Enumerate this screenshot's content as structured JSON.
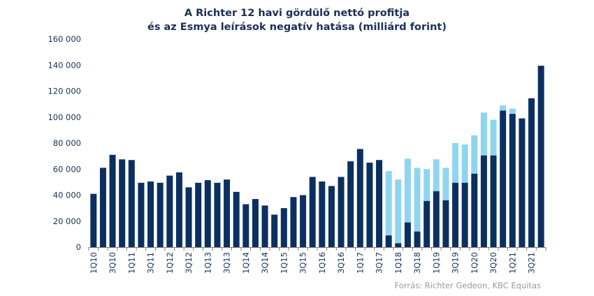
{
  "chart_data": {
    "type": "bar",
    "stacked": true,
    "title_line1": "A Richter 12 havi gördülő nettó profitja",
    "title_line2": "és az Esmya leírások negatív hatása (milliárd forint)",
    "source": "Forrás: Richter Gedeon, KBC Equitas",
    "ylim": [
      0,
      160000
    ],
    "yticks": [
      0,
      20000,
      40000,
      60000,
      80000,
      100000,
      120000,
      140000,
      160000
    ],
    "ytick_labels": [
      "0",
      "20 000",
      "40 000",
      "60 000",
      "80 000",
      "100 000",
      "120 000",
      "140 000",
      "160 000"
    ],
    "categories": [
      "1Q10",
      "2Q10",
      "3Q10",
      "4Q10",
      "1Q11",
      "2Q11",
      "3Q11",
      "4Q11",
      "1Q12",
      "2Q12",
      "3Q12",
      "4Q12",
      "1Q13",
      "2Q13",
      "3Q13",
      "4Q13",
      "1Q14",
      "2Q14",
      "3Q14",
      "4Q14",
      "1Q15",
      "2Q15",
      "3Q15",
      "4Q15",
      "1Q16",
      "2Q16",
      "3Q16",
      "4Q16",
      "1Q17",
      "2Q17",
      "3Q17",
      "4Q17",
      "1Q18",
      "2Q18",
      "3Q18",
      "4Q18",
      "1Q19",
      "2Q19",
      "3Q19",
      "4Q19",
      "1Q20",
      "2Q20",
      "3Q20",
      "4Q20",
      "1Q21",
      "2Q21",
      "3Q21",
      "4Q21"
    ],
    "xtick_labels": [
      "1Q10",
      "",
      "3Q10",
      "",
      "1Q11",
      "",
      "3Q11",
      "",
      "1Q12",
      "",
      "3Q12",
      "",
      "1Q13",
      "",
      "3Q13",
      "",
      "1Q14",
      "",
      "3Q14",
      "",
      "1Q15",
      "",
      "3Q15",
      "",
      "1Q16",
      "",
      "3Q16",
      "",
      "1Q17",
      "",
      "3Q17",
      "",
      "1Q18",
      "",
      "3Q18",
      "",
      "1Q19",
      "",
      "3Q19",
      "",
      "1Q20",
      "",
      "3Q20",
      "",
      "1Q21",
      "",
      "3Q21",
      ""
    ],
    "series": [
      {
        "name": "12 havi gördülő nettó profit",
        "color": "#0b3060",
        "values": [
          41000,
          61000,
          71000,
          67500,
          67000,
          49500,
          50500,
          49500,
          55000,
          57500,
          46000,
          49500,
          51500,
          49500,
          52000,
          42500,
          33000,
          37000,
          32000,
          25000,
          30000,
          38500,
          40000,
          54000,
          50500,
          47000,
          54000,
          66000,
          75500,
          65000,
          67000,
          9000,
          3000,
          19000,
          12000,
          35500,
          43000,
          36000,
          49500,
          49500,
          56500,
          70500,
          70500,
          105000,
          102500,
          99000,
          114500,
          139500
        ]
      },
      {
        "name": "Esmya leírások negatív hatása",
        "color": "#8fd5f0",
        "values": [
          0,
          0,
          0,
          0,
          0,
          0,
          0,
          0,
          0,
          0,
          0,
          0,
          0,
          0,
          0,
          0,
          0,
          0,
          0,
          0,
          0,
          0,
          0,
          0,
          0,
          0,
          0,
          0,
          0,
          0,
          0,
          49500,
          49000,
          49000,
          49000,
          24500,
          24500,
          25000,
          30500,
          29500,
          29500,
          33000,
          27500,
          4000,
          4000,
          0,
          0,
          0
        ]
      }
    ]
  }
}
